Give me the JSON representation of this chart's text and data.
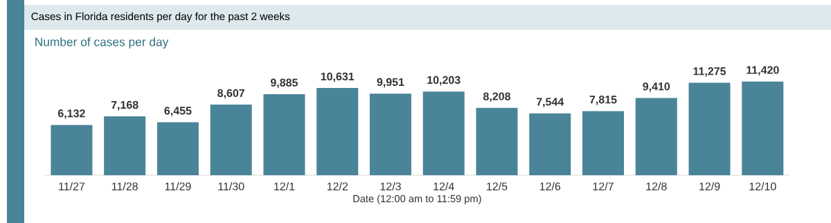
{
  "chart_data": {
    "type": "bar",
    "title": "Cases in Florida residents per day for the past 2 weeks",
    "subtitle": "Number of cases per day",
    "xlabel": "Date (12:00 am to 11:59 pm)",
    "categories": [
      "11/27",
      "11/28",
      "11/29",
      "11/30",
      "12/1",
      "12/2",
      "12/3",
      "12/4",
      "12/5",
      "12/6",
      "12/7",
      "12/8",
      "12/9",
      "12/10"
    ],
    "values": [
      6132,
      7168,
      6455,
      8607,
      9885,
      10631,
      9951,
      10203,
      8208,
      7544,
      7815,
      9410,
      11275,
      11420
    ],
    "value_labels": [
      "6,132",
      "7,168",
      "6,455",
      "8,607",
      "9,885",
      "10,631",
      "9,951",
      "10,203",
      "8,208",
      "7,544",
      "7,815",
      "9,410",
      "11,275",
      "11,420"
    ],
    "color": "#4a8499"
  }
}
